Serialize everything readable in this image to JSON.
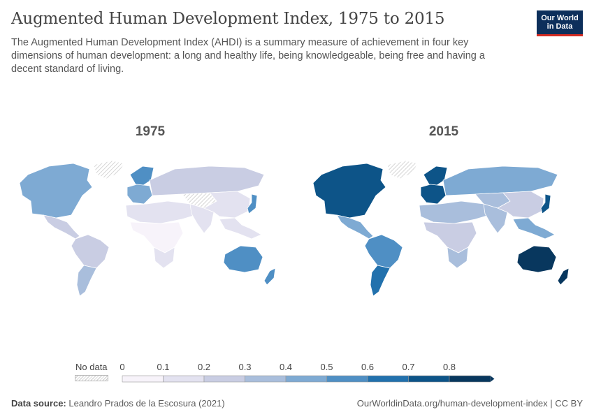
{
  "header": {
    "title": "Augmented Human Development Index, 1975 to 2015",
    "subtitle": "The Augmented Human Development Index (AHDI) is a summary measure of achievement in four key dimensions of human development: a long and healthy life, being knowledgeable, being free and having a decent standard of living."
  },
  "logo": {
    "line1": "Our World",
    "line2": "in Data"
  },
  "maps": [
    {
      "year": "1975"
    },
    {
      "year": "2015"
    }
  ],
  "legend": {
    "nodata_label": "No data",
    "ticks": [
      "0",
      "0.1",
      "0.2",
      "0.3",
      "0.4",
      "0.5",
      "0.6",
      "0.7",
      "0.8"
    ],
    "colors": [
      "#f7f3fa",
      "#e3e2f0",
      "#c9cde3",
      "#a9bedc",
      "#7eaad3",
      "#4f8fc4",
      "#2271ad",
      "#0d5488",
      "#08375e"
    ]
  },
  "footer": {
    "source_label": "Data source:",
    "source_text": "Leandro Prados de la Escosura (2021)",
    "url": "OurWorldinData.org/human-development-index | CC BY"
  },
  "regions": [
    {
      "name": "North America",
      "v1975": 0.46,
      "v2015": 0.72
    },
    {
      "name": "Central America",
      "v1975": 0.2,
      "v2015": 0.42
    },
    {
      "name": "South America",
      "v1975": 0.22,
      "v2015": 0.5
    },
    {
      "name": "Southern Cone",
      "v1975": 0.3,
      "v2015": 0.6
    },
    {
      "name": "Greenland",
      "v1975": null,
      "v2015": null
    },
    {
      "name": "Northern Europe",
      "v1975": 0.55,
      "v2015": 0.78
    },
    {
      "name": "Western Europe",
      "v1975": 0.48,
      "v2015": 0.75
    },
    {
      "name": "Eastern Europe and Russia",
      "v1975": 0.25,
      "v2015": 0.4
    },
    {
      "name": "North Africa and Middle East",
      "v1975": 0.1,
      "v2015": 0.33
    },
    {
      "name": "Sub-Saharan Africa",
      "v1975": 0.08,
      "v2015": 0.2
    },
    {
      "name": "Southern Africa",
      "v1975": 0.18,
      "v2015": 0.38
    },
    {
      "name": "Central Asia",
      "v1975": null,
      "v2015": 0.33
    },
    {
      "name": "South Asia",
      "v1975": 0.1,
      "v2015": 0.3
    },
    {
      "name": "China",
      "v1975": 0.12,
      "v2015": 0.28
    },
    {
      "name": "Japan",
      "v1975": 0.5,
      "v2015": 0.75
    },
    {
      "name": "Southeast Asia",
      "v1975": 0.15,
      "v2015": 0.45
    },
    {
      "name": "Australia",
      "v1975": 0.55,
      "v2015": 0.85
    },
    {
      "name": "New Zealand",
      "v1975": 0.55,
      "v2015": 0.82
    }
  ]
}
